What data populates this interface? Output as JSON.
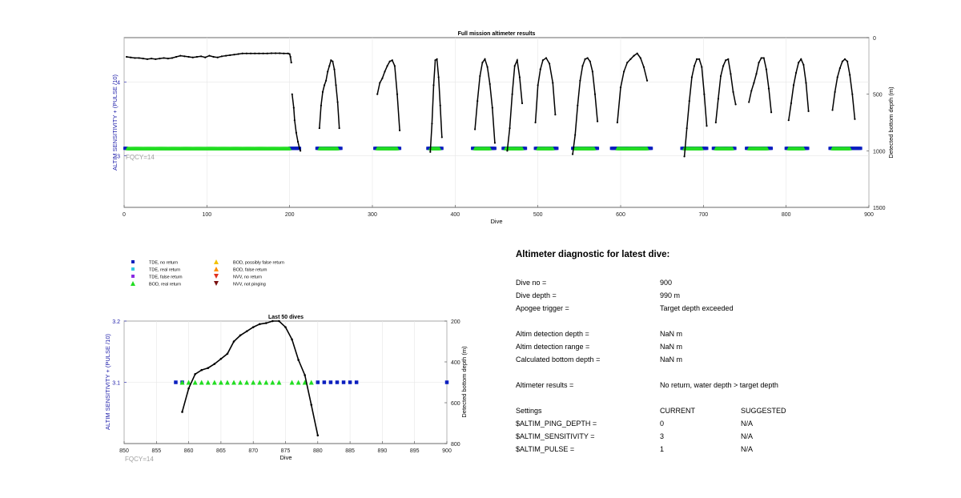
{
  "colors": {
    "tde_no_return": "#0b1fbf",
    "tde_real_return": "#33c9e0",
    "tde_false_return": "#8a2be2",
    "bod_real_return": "#22dd22",
    "bod_possibly_false": "#f2c200",
    "bod_false_return": "#ff8c00",
    "nvv_no_return": "#e0301e",
    "nvv_not_pinging": "#7a1010",
    "left_axis": "#1a1aa8",
    "fqcy": "#a0a0a0",
    "depth_line": "#000000"
  },
  "legend": {
    "items": [
      {
        "label": "TDE, no return",
        "marker": "square",
        "color_key": "tde_no_return"
      },
      {
        "label": "TDE, real return",
        "marker": "square",
        "color_key": "tde_real_return"
      },
      {
        "label": "TDE, false return",
        "marker": "square",
        "color_key": "tde_false_return"
      },
      {
        "label": "BOD, real return",
        "marker": "triangle-up",
        "color_key": "bod_real_return"
      },
      {
        "label": "BOD, possibly false return",
        "marker": "triangle-up",
        "color_key": "bod_possibly_false"
      },
      {
        "label": "BOD, false return",
        "marker": "triangle-up",
        "color_key": "bod_false_return"
      },
      {
        "label": "NVV, no return",
        "marker": "triangle-down",
        "color_key": "nvv_no_return"
      },
      {
        "label": "NVV, not pinging",
        "marker": "triangle-down",
        "color_key": "nvv_not_pinging"
      }
    ]
  },
  "chart_data": [
    {
      "type": "scatter",
      "title": "Full mission altimeter results",
      "xlabel": "Dive",
      "ylabel": "ALTIM SENSITIVITY + (PULSE /10)",
      "y2label": "Detected bottom depth (m)",
      "annotation": "FQCY=14",
      "xlim": [
        0,
        900
      ],
      "ylim": [
        2.3,
        4.6
      ],
      "y2lim": [
        0,
        1500
      ],
      "y2_reversed": true,
      "xticks": [
        "0",
        "100",
        "200",
        "300",
        "400",
        "500",
        "600",
        "700",
        "800",
        "900"
      ],
      "yticks": [
        "3",
        "4"
      ],
      "y2ticks": [
        "0",
        "500",
        "1000",
        "1500"
      ],
      "grid": true,
      "tde_no_return_ranges": [
        [
          1,
          3
        ],
        [
          200,
          212
        ],
        [
          233,
          262
        ],
        [
          303,
          333
        ],
        [
          367,
          384
        ],
        [
          421,
          448
        ],
        [
          458,
          485
        ],
        [
          497,
          523
        ],
        [
          542,
          572
        ],
        [
          589,
          637
        ],
        [
          674,
          704
        ],
        [
          712,
          738
        ],
        [
          752,
          782
        ],
        [
          800,
          826
        ],
        [
          853,
          890
        ]
      ],
      "bod_real_return_ranges": [
        [
          4,
          200
        ],
        [
          236,
          258
        ],
        [
          306,
          330
        ],
        [
          370,
          381
        ],
        [
          424,
          442
        ],
        [
          461,
          481
        ],
        [
          500,
          518
        ],
        [
          545,
          568
        ],
        [
          596,
          632
        ],
        [
          677,
          698
        ],
        [
          715,
          735
        ],
        [
          755,
          777
        ],
        [
          803,
          821
        ],
        [
          856,
          877
        ]
      ],
      "marker_y": 3.1,
      "depth_segments": [
        {
          "x": [
            3,
            8,
            13,
            18,
            23,
            28,
            33,
            38,
            43,
            48,
            53,
            58,
            63,
            68,
            73,
            78,
            83,
            88,
            93,
            98,
            103,
            108,
            113,
            118,
            123,
            128,
            133,
            138,
            143,
            148,
            153,
            158,
            163,
            168,
            173,
            178,
            183,
            188,
            193,
            198,
            200,
            201,
            202
          ],
          "y": [
            170,
            175,
            180,
            180,
            185,
            190,
            185,
            190,
            185,
            180,
            185,
            180,
            170,
            160,
            165,
            170,
            175,
            170,
            165,
            175,
            160,
            170,
            175,
            165,
            160,
            155,
            150,
            145,
            140,
            140,
            140,
            140,
            140,
            140,
            140,
            138,
            138,
            138,
            140,
            140,
            145,
            170,
            220
          ]
        },
        {
          "x": [
            203,
            205,
            206,
            208,
            210,
            212,
            213
          ],
          "y": [
            500,
            620,
            730,
            840,
            920,
            980,
            1000
          ]
        },
        {
          "x": [
            236,
            238,
            240,
            242,
            244,
            246,
            248,
            250,
            252,
            254,
            256,
            258,
            260
          ],
          "y": [
            800,
            600,
            480,
            420,
            380,
            300,
            250,
            200,
            210,
            280,
            420,
            570,
            800
          ]
        },
        {
          "x": [
            306,
            309,
            312,
            315,
            318,
            321,
            324,
            327,
            330,
            333
          ],
          "y": [
            500,
            400,
            360,
            300,
            250,
            210,
            200,
            250,
            500,
            820
          ]
        },
        {
          "x": [
            370,
            372,
            374,
            376,
            378,
            380,
            382,
            384
          ],
          "y": [
            1010,
            760,
            420,
            200,
            190,
            350,
            600,
            880
          ]
        },
        {
          "x": [
            424,
            427,
            430,
            433,
            436,
            439,
            442,
            445,
            448
          ],
          "y": [
            810,
            560,
            340,
            220,
            190,
            260,
            410,
            620,
            930
          ]
        },
        {
          "x": [
            463,
            466,
            469,
            472,
            475,
            478,
            481
          ],
          "y": [
            1000,
            800,
            500,
            250,
            200,
            350,
            580
          ]
        },
        {
          "x": [
            497,
            500,
            503,
            506,
            510,
            514,
            518,
            521
          ],
          "y": [
            750,
            420,
            280,
            200,
            180,
            230,
            400,
            680
          ]
        },
        {
          "x": [
            542,
            545,
            548,
            551,
            554,
            557,
            560,
            563,
            566,
            569,
            572
          ],
          "y": [
            1030,
            860,
            600,
            380,
            250,
            190,
            180,
            210,
            300,
            500,
            740
          ]
        },
        {
          "x": [
            596,
            600,
            604,
            608,
            612,
            616,
            620,
            624,
            628,
            632
          ],
          "y": [
            750,
            440,
            300,
            220,
            190,
            160,
            140,
            180,
            260,
            380
          ]
        },
        {
          "x": [
            677,
            680,
            683,
            686,
            689,
            692,
            695,
            698,
            701,
            704
          ],
          "y": [
            1050,
            800,
            560,
            350,
            250,
            190,
            190,
            260,
            500,
            780
          ]
        },
        {
          "x": [
            715,
            718,
            721,
            724,
            727,
            730,
            733,
            736,
            739
          ],
          "y": [
            750,
            540,
            340,
            250,
            200,
            190,
            320,
            480,
            590
          ]
        },
        {
          "x": [
            755,
            758,
            761,
            764,
            767,
            770,
            773,
            776,
            779,
            782
          ],
          "y": [
            570,
            470,
            400,
            320,
            220,
            180,
            180,
            280,
            450,
            660
          ]
        },
        {
          "x": [
            803,
            806,
            809,
            812,
            815,
            818,
            821,
            824,
            827
          ],
          "y": [
            730,
            580,
            420,
            310,
            220,
            190,
            240,
            400,
            650
          ]
        },
        {
          "x": [
            856,
            859,
            862,
            865,
            868,
            871,
            874,
            877,
            880,
            883
          ],
          "y": [
            640,
            480,
            350,
            270,
            210,
            190,
            210,
            330,
            500,
            720
          ]
        }
      ]
    },
    {
      "type": "scatter",
      "title": "Last 50 dives",
      "xlabel": "Dive",
      "ylabel": "ALTIM SENSITIVITY + (PULSE /10)",
      "y2label": "Detected bottom depth (m)",
      "annotation": "FQCY=14",
      "xlim": [
        850,
        900
      ],
      "ylim": [
        3.0,
        3.2
      ],
      "y2lim": [
        200,
        800
      ],
      "y2_reversed": true,
      "xticks": [
        "850",
        "855",
        "860",
        "865",
        "870",
        "875",
        "880",
        "885",
        "890",
        "895",
        "900"
      ],
      "yticks": [
        "3.1",
        "3.2"
      ],
      "y2ticks": [
        "200",
        "400",
        "600",
        "800"
      ],
      "grid": true,
      "tde_no_return_x": [
        858,
        859,
        880,
        881,
        882,
        883,
        884,
        885,
        886,
        900
      ],
      "bod_real_return_x": [
        859,
        860,
        861,
        862,
        863,
        864,
        865,
        866,
        867,
        868,
        869,
        870,
        871,
        872,
        873,
        874,
        876,
        877,
        878,
        879
      ],
      "marker_y": 3.1,
      "depth_line": {
        "x": [
          859,
          860,
          861,
          862,
          863,
          864,
          865,
          866,
          867,
          868,
          869,
          870,
          871,
          872,
          873,
          874,
          875,
          876,
          877,
          878,
          879,
          880
        ],
        "y": [
          645,
          530,
          460,
          440,
          430,
          410,
          385,
          360,
          300,
          270,
          250,
          230,
          215,
          210,
          200,
          200,
          230,
          290,
          390,
          465,
          610,
          760
        ]
      }
    }
  ],
  "diagnostic": {
    "title": "Altimeter diagnostic for latest dive:",
    "rows": [
      {
        "label": "Dive no =",
        "value": "900"
      },
      {
        "label": "Dive depth =",
        "value": "990 m"
      },
      {
        "label": "Apogee trigger =",
        "value": "Target depth exceeded"
      },
      {
        "label": "Altim detection depth =",
        "value": "NaN m"
      },
      {
        "label": "Altim detection range =",
        "value": "NaN m"
      },
      {
        "label": "Calculated bottom depth =",
        "value": "NaN m"
      },
      {
        "label": "Altimeter results =",
        "value": "No return, water depth > target depth"
      }
    ],
    "settings_header": {
      "label": "Settings",
      "current": "CURRENT",
      "suggested": "SUGGESTED"
    },
    "settings": [
      {
        "name": "$ALTIM_PING_DEPTH =",
        "current": "0",
        "suggested": "N/A"
      },
      {
        "name": "$ALTIM_SENSITIVITY =",
        "current": "3",
        "suggested": "N/A"
      },
      {
        "name": "$ALTIM_PULSE =",
        "current": "1",
        "suggested": "N/A"
      }
    ]
  }
}
